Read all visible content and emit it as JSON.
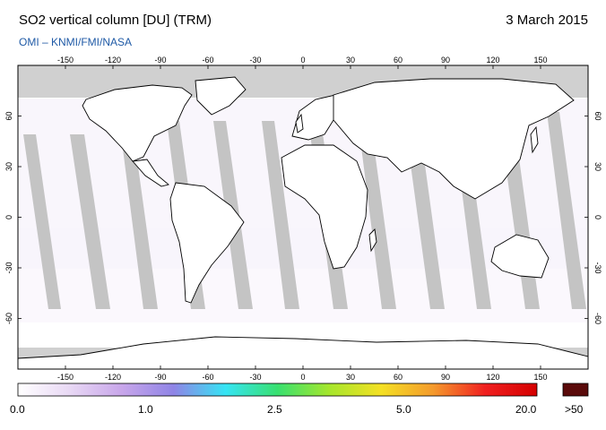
{
  "header": {
    "title": "SO2 vertical column [DU] (TRM)",
    "date": "3 March 2015",
    "credit": "OMI  –  KNMI/FMI/NASA"
  },
  "map": {
    "projection": "equirectangular",
    "lon_range": [
      -180,
      180
    ],
    "lat_range": [
      -90,
      90
    ],
    "lon_ticks": [
      "-150",
      "-120",
      "-90",
      "-60",
      "-30",
      "0",
      "30",
      "60",
      "90",
      "120",
      "150"
    ],
    "lat_ticks": [
      "60",
      "30",
      "0",
      "-30",
      "-60"
    ],
    "colors": {
      "land_no_data": "#aaaaaa",
      "polar_no_data": "#d0d0d0",
      "ocean": "#ffffff",
      "coast": "#000000"
    }
  },
  "colorbar": {
    "labels": [
      "0.0",
      "1.0",
      "2.5",
      "5.0",
      "20.0"
    ],
    "overflow_label": ">50",
    "overflow_color": "#5a0a0a",
    "stops": [
      "#ffffff",
      "#e8d8f4",
      "#c8a6ea",
      "#8f84e6",
      "#36e4f4",
      "#38e070",
      "#a6e62c",
      "#f4e024",
      "#f49a2c",
      "#f02020",
      "#d40000"
    ]
  }
}
